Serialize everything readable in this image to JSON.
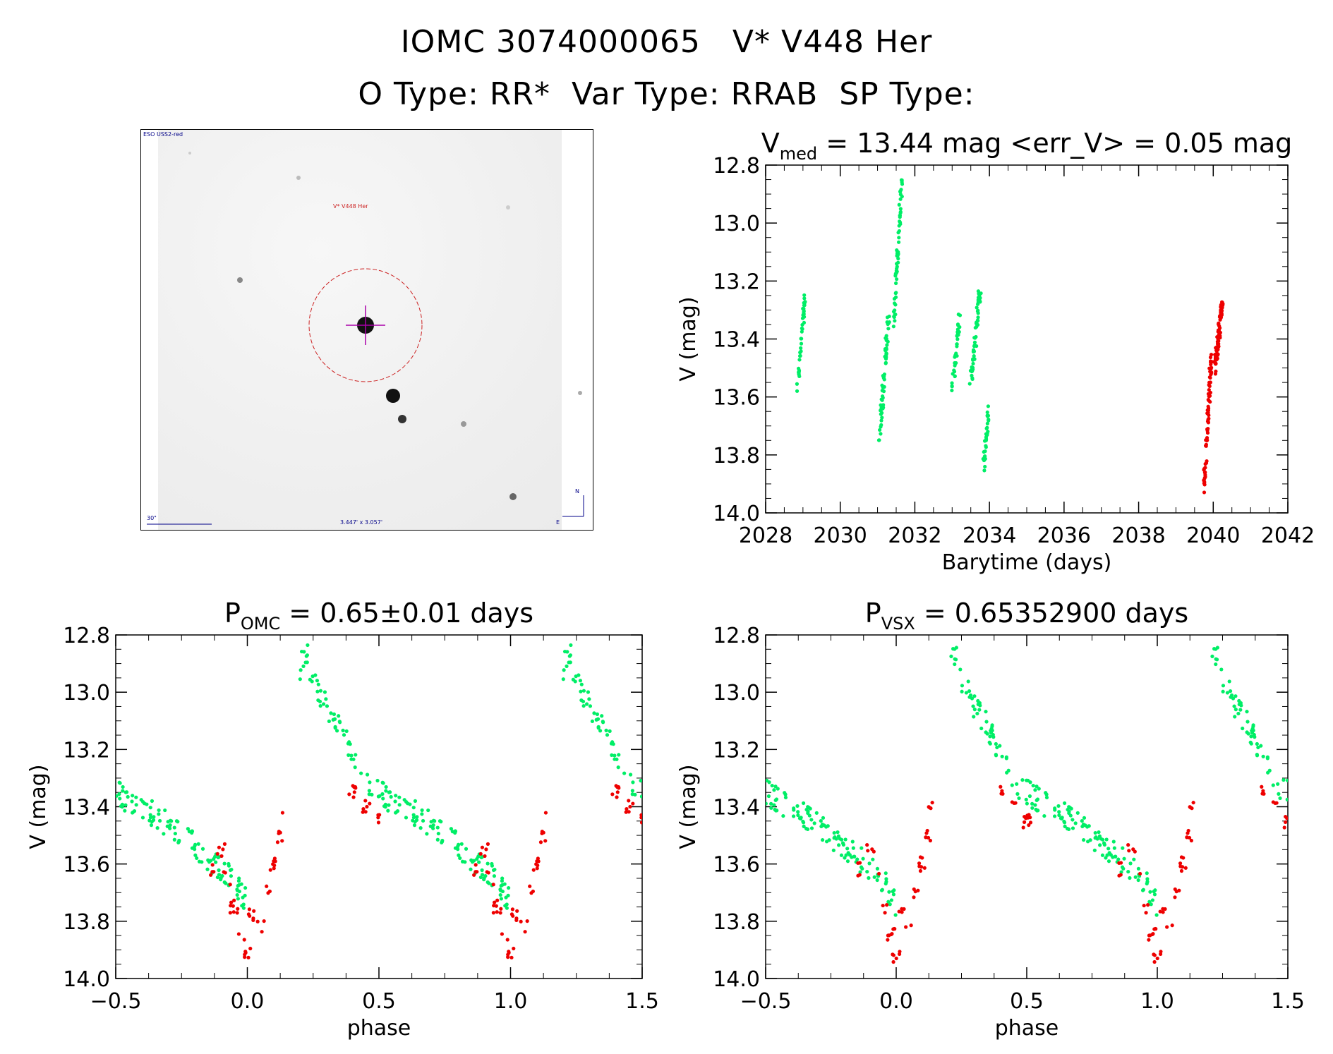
{
  "header": {
    "line1": "IOMC 3074000065   V* V448 Her",
    "line2": "O Type: RR*  Var Type: RRAB  SP Type:"
  },
  "finder": {
    "survey": "ESO USS2-red",
    "target_label": "V* V448 Her",
    "scale_label": "30\"",
    "fov_label": "3.447' x 3.057'",
    "compass_n": "N",
    "compass_e": "E"
  },
  "colors": {
    "green": "#00ee66",
    "red": "#ee0000",
    "finder_circle": "#cc2222",
    "crosshair": "#aa00aa",
    "annot": "#000088"
  },
  "chart_data": [
    {
      "type": "scatter",
      "title_main": "V",
      "title_sub": "med",
      "title_rest": " = 13.44 mag <err_V> = 0.05 mag",
      "xlabel": "Barytime (days)",
      "ylabel": "V (mag)",
      "xlim": [
        2028,
        2042
      ],
      "ylim": [
        14.0,
        12.8
      ],
      "xticks": [
        "2028",
        "2030",
        "2032",
        "2034",
        "2036",
        "2038",
        "2040",
        "2042"
      ],
      "yticks": [
        "12.8",
        "13.0",
        "13.2",
        "13.4",
        "13.6",
        "13.8",
        "14.0"
      ],
      "series": [
        {
          "color": "green",
          "clusters": [
            {
              "x0": 2028.85,
              "x1": 2029.05,
              "y0": 13.57,
              "y1": 13.26,
              "n": 40
            },
            {
              "x0": 2031.05,
              "x1": 2031.3,
              "y0": 13.75,
              "y1": 13.32,
              "n": 60
            },
            {
              "x0": 2031.45,
              "x1": 2031.65,
              "y0": 13.33,
              "y1": 12.84,
              "n": 60
            },
            {
              "x0": 2033.0,
              "x1": 2033.2,
              "y0": 13.58,
              "y1": 13.33,
              "n": 35
            },
            {
              "x0": 2033.5,
              "x1": 2033.75,
              "y0": 13.56,
              "y1": 13.22,
              "n": 55
            },
            {
              "x0": 2033.85,
              "x1": 2034.0,
              "y0": 13.84,
              "y1": 13.62,
              "n": 30
            }
          ]
        },
        {
          "color": "red",
          "clusters": [
            {
              "x0": 2039.75,
              "x1": 2039.95,
              "y0": 13.92,
              "y1": 13.46,
              "n": 70
            },
            {
              "x0": 2040.05,
              "x1": 2040.25,
              "y0": 13.5,
              "y1": 13.27,
              "n": 80
            }
          ]
        }
      ]
    },
    {
      "type": "scatter",
      "title_main": "P",
      "title_sub": "OMC",
      "title_rest": " = 0.65±0.01 days",
      "xlabel": "phase",
      "ylabel": "V (mag)",
      "xlim": [
        -0.5,
        1.5
      ],
      "ylim": [
        14.0,
        12.8
      ],
      "xticks": [
        "−0.5",
        "0.0",
        "0.5",
        "1.0",
        "1.5"
      ],
      "yticks": [
        "12.8",
        "13.0",
        "13.2",
        "13.4",
        "13.6",
        "13.8",
        "14.0"
      ],
      "light_curve": {
        "green": [
          [
            0.0,
            13.75
          ],
          [
            0.05,
            13.72
          ],
          [
            0.1,
            13.7
          ],
          [
            0.2,
            12.92
          ],
          [
            0.22,
            12.85
          ],
          [
            0.25,
            12.95
          ],
          [
            0.3,
            13.05
          ],
          [
            0.35,
            13.12
          ],
          [
            0.4,
            13.22
          ],
          [
            0.45,
            13.32
          ],
          [
            0.55,
            13.38
          ],
          [
            0.65,
            13.43
          ],
          [
            0.75,
            13.5
          ],
          [
            0.82,
            13.55
          ],
          [
            0.88,
            13.6
          ],
          [
            0.95,
            13.66
          ],
          [
            1.0,
            13.74
          ]
        ],
        "red": [
          [
            0.86,
            13.62
          ],
          [
            0.9,
            13.55
          ],
          [
            0.92,
            13.65
          ],
          [
            0.95,
            13.75
          ],
          [
            0.98,
            13.85
          ],
          [
            1.0,
            13.92
          ],
          [
            1.02,
            13.78
          ],
          [
            1.05,
            13.82
          ],
          [
            1.08,
            13.7
          ],
          [
            1.1,
            13.6
          ],
          [
            1.12,
            13.5
          ],
          [
            1.13,
            13.4
          ],
          [
            1.4,
            13.35
          ],
          [
            1.45,
            13.4
          ],
          [
            1.5,
            13.45
          ]
        ]
      }
    },
    {
      "type": "scatter",
      "title_main": "P",
      "title_sub": "VSX",
      "title_rest": " = 0.65352900 days",
      "xlabel": "phase",
      "ylabel": "V (mag)",
      "xlim": [
        -0.5,
        1.5
      ],
      "ylim": [
        14.0,
        12.8
      ],
      "xticks": [
        "−0.5",
        "0.0",
        "0.5",
        "1.0",
        "1.5"
      ],
      "yticks": [
        "12.8",
        "13.0",
        "13.2",
        "13.4",
        "13.6",
        "13.8",
        "14.0"
      ],
      "light_curve": {
        "green": [
          [
            0.0,
            13.75
          ],
          [
            0.05,
            13.72
          ],
          [
            0.1,
            13.7
          ],
          [
            0.2,
            12.92
          ],
          [
            0.22,
            12.85
          ],
          [
            0.25,
            12.95
          ],
          [
            0.3,
            13.05
          ],
          [
            0.35,
            13.12
          ],
          [
            0.4,
            13.22
          ],
          [
            0.45,
            13.32
          ],
          [
            0.55,
            13.38
          ],
          [
            0.65,
            13.43
          ],
          [
            0.75,
            13.5
          ],
          [
            0.82,
            13.55
          ],
          [
            0.88,
            13.6
          ],
          [
            0.95,
            13.66
          ],
          [
            1.0,
            13.74
          ]
        ],
        "red": [
          [
            0.86,
            13.62
          ],
          [
            0.9,
            13.55
          ],
          [
            0.92,
            13.65
          ],
          [
            0.95,
            13.75
          ],
          [
            0.98,
            13.85
          ],
          [
            1.0,
            13.92
          ],
          [
            1.02,
            13.78
          ],
          [
            1.05,
            13.82
          ],
          [
            1.08,
            13.7
          ],
          [
            1.1,
            13.6
          ],
          [
            1.12,
            13.5
          ],
          [
            1.13,
            13.4
          ],
          [
            1.4,
            13.35
          ],
          [
            1.45,
            13.4
          ],
          [
            1.5,
            13.45
          ]
        ]
      }
    }
  ]
}
